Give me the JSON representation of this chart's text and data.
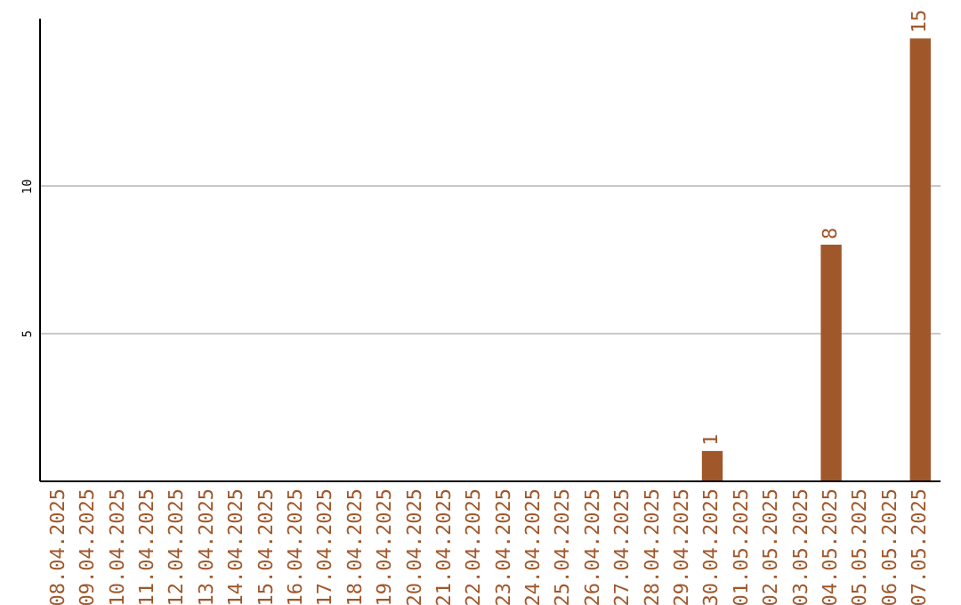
{
  "chart_data": {
    "type": "bar",
    "categories": [
      "08.04.2025",
      "09.04.2025",
      "10.04.2025",
      "11.04.2025",
      "12.04.2025",
      "13.04.2025",
      "14.04.2025",
      "15.04.2025",
      "16.04.2025",
      "17.04.2025",
      "18.04.2025",
      "19.04.2025",
      "20.04.2025",
      "21.04.2025",
      "22.04.2025",
      "23.04.2025",
      "24.04.2025",
      "25.04.2025",
      "26.04.2025",
      "27.04.2025",
      "28.04.2025",
      "29.04.2025",
      "30.04.2025",
      "01.05.2025",
      "02.05.2025",
      "03.05.2025",
      "04.05.2025",
      "05.05.2025",
      "06.05.2025",
      "07.05.2025"
    ],
    "values": [
      0,
      0,
      0,
      0,
      0,
      0,
      0,
      0,
      0,
      0,
      0,
      0,
      0,
      0,
      0,
      0,
      0,
      0,
      0,
      0,
      0,
      0,
      1,
      0,
      0,
      0,
      8,
      0,
      0,
      15
    ],
    "value_labels": [
      null,
      null,
      null,
      null,
      null,
      null,
      null,
      null,
      null,
      null,
      null,
      null,
      null,
      null,
      null,
      null,
      null,
      null,
      null,
      null,
      null,
      null,
      "1",
      null,
      null,
      null,
      "8",
      null,
      null,
      "15"
    ],
    "color": "#a0572a",
    "ylim": [
      0,
      15.7
    ],
    "yticks": [
      5,
      10
    ],
    "grid": "y"
  }
}
